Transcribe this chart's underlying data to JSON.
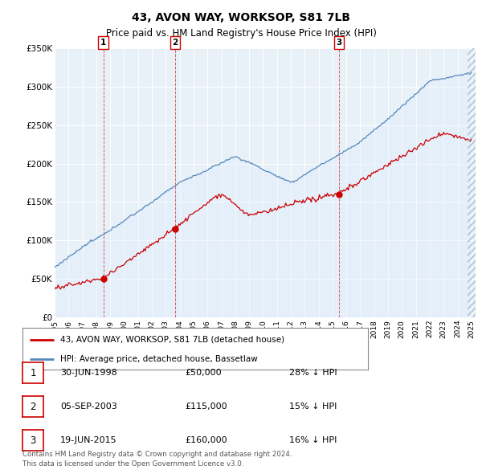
{
  "title": "43, AVON WAY, WORKSOP, S81 7LB",
  "subtitle": "Price paid vs. HM Land Registry's House Price Index (HPI)",
  "ylim": [
    0,
    350000
  ],
  "yticks": [
    0,
    50000,
    100000,
    150000,
    200000,
    250000,
    300000,
    350000
  ],
  "ytick_labels": [
    "£0",
    "£50K",
    "£100K",
    "£150K",
    "£200K",
    "£250K",
    "£300K",
    "£350K"
  ],
  "price_paid_color": "#cc0000",
  "hpi_color": "#5588bb",
  "hpi_fill_color": "#ddeeff",
  "vline_color": "#cc0000",
  "sale_points": [
    {
      "year": 1998.5,
      "price": 50000,
      "label": "1"
    },
    {
      "year": 2003.67,
      "price": 115000,
      "label": "2"
    },
    {
      "year": 2015.47,
      "price": 160000,
      "label": "3"
    }
  ],
  "transactions": [
    {
      "num": "1",
      "date": "30-JUN-1998",
      "price": "£50,000",
      "hpi": "28% ↓ HPI"
    },
    {
      "num": "2",
      "date": "05-SEP-2003",
      "price": "£115,000",
      "hpi": "15% ↓ HPI"
    },
    {
      "num": "3",
      "date": "19-JUN-2015",
      "price": "£160,000",
      "hpi": "16% ↓ HPI"
    }
  ],
  "legend_entries": [
    "43, AVON WAY, WORKSOP, S81 7LB (detached house)",
    "HPI: Average price, detached house, Bassetlaw"
  ],
  "footer": "Contains HM Land Registry data © Crown copyright and database right 2024.\nThis data is licensed under the Open Government Licence v3.0.",
  "background_color": "#ffffff",
  "plot_bg_color": "#e8f0f8"
}
